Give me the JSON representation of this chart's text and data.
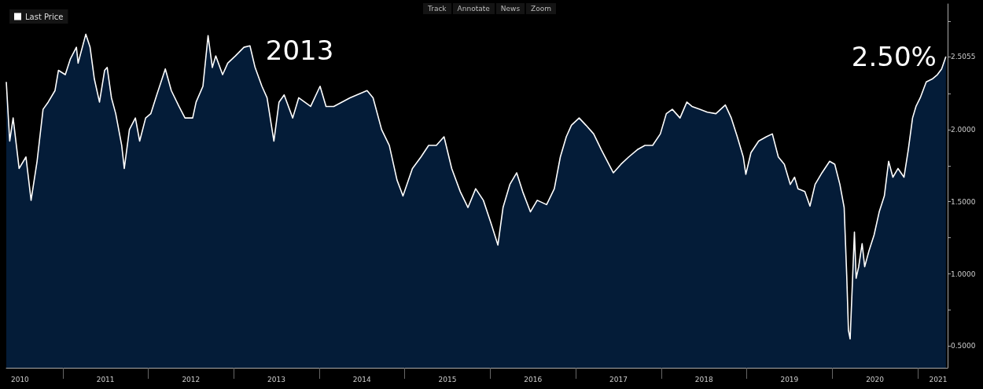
{
  "chart_data": {
    "type": "area",
    "legend": "top left",
    "marker": "none",
    "line_style": "solid",
    "annotations": [
      {
        "text": "2013",
        "x": 2013.19,
        "y": 2.58
      },
      {
        "text": "2.50%",
        "x": 2021.33,
        "y": 2.5055
      },
      "Track",
      "Annotate",
      "News",
      "Zoom"
    ],
    "xlim": [
      2010.34,
      2021.35
    ],
    "xticks": [
      {
        "value": 2010.5,
        "label": "2010"
      },
      {
        "value": 2011,
        "label": null
      },
      {
        "value": 2011.5,
        "label": "2011"
      },
      {
        "value": 2012,
        "label": null
      },
      {
        "value": 2012.5,
        "label": "2012"
      },
      {
        "value": 2013,
        "label": null
      },
      {
        "value": 2013.5,
        "label": "2013"
      },
      {
        "value": 2014,
        "label": null
      },
      {
        "value": 2014.5,
        "label": "2014"
      },
      {
        "value": 2015,
        "label": null
      },
      {
        "value": 2015.5,
        "label": "2015"
      },
      {
        "value": 2016,
        "label": null
      },
      {
        "value": 2016.5,
        "label": "2016"
      },
      {
        "value": 2017,
        "label": null
      },
      {
        "value": 2017.5,
        "label": "2017"
      },
      {
        "value": 2018,
        "label": null
      },
      {
        "value": 2018.5,
        "label": "2018"
      },
      {
        "value": 2019,
        "label": null
      },
      {
        "value": 2019.5,
        "label": "2019"
      },
      {
        "value": 2020,
        "label": null
      },
      {
        "value": 2020.5,
        "label": "2020"
      },
      {
        "value": 2021,
        "label": null
      },
      {
        "value": 2021.24,
        "label": "2021"
      }
    ],
    "ylim": [
      0.35,
      2.87
    ],
    "yticks": [
      {
        "value": 0.5,
        "label": "0.5000"
      },
      {
        "value": 0.75,
        "label": null
      },
      {
        "value": 1,
        "label": "1.0000"
      },
      {
        "value": 1.25,
        "label": null
      },
      {
        "value": 1.5,
        "label": "1.5000"
      },
      {
        "value": 1.75,
        "label": null
      },
      {
        "value": 2,
        "label": "2.0000"
      },
      {
        "value": 2.25,
        "label": null
      },
      {
        "value": 2.5055,
        "label": "2.5055"
      },
      {
        "value": 2.75,
        "label": null
      }
    ],
    "series": [
      {
        "name": "Last Price",
        "color": "#ffffff",
        "x": [
          2010.34,
          2010.38,
          2010.42,
          2010.49,
          2010.57,
          2010.63,
          2010.7,
          2010.77,
          2010.83,
          2010.91,
          2010.95,
          2011.03,
          2011.09,
          2011.16,
          2011.18,
          2011.27,
          2011.32,
          2011.37,
          2011.43,
          2011.49,
          2011.52,
          2011.57,
          2011.62,
          2011.69,
          2011.72,
          2011.78,
          2011.85,
          2011.9,
          2011.97,
          2012.03,
          2012.1,
          2012.2,
          2012.27,
          2012.36,
          2012.43,
          2012.52,
          2012.56,
          2012.64,
          2012.7,
          2012.75,
          2012.79,
          2012.87,
          2012.93,
          2013.02,
          2013.12,
          2013.19,
          2013.25,
          2013.33,
          2013.39,
          2013.47,
          2013.53,
          2013.59,
          2013.69,
          2013.76,
          2013.9,
          2014.01,
          2014.08,
          2014.17,
          2014.36,
          2014.56,
          2014.63,
          2014.73,
          2014.82,
          2014.91,
          2014.98,
          2015.09,
          2015.19,
          2015.28,
          2015.37,
          2015.46,
          2015.55,
          2015.65,
          2015.74,
          2015.83,
          2015.92,
          2016.01,
          2016.09,
          2016.15,
          2016.23,
          2016.31,
          2016.38,
          2016.47,
          2016.55,
          2016.66,
          2016.75,
          2016.82,
          2016.89,
          2016.95,
          2017.04,
          2017.12,
          2017.21,
          2017.3,
          2017.44,
          2017.53,
          2017.62,
          2017.72,
          2017.81,
          2017.9,
          2017.99,
          2018.06,
          2018.13,
          2018.22,
          2018.3,
          2018.36,
          2018.45,
          2018.54,
          2018.64,
          2018.75,
          2018.82,
          2018.89,
          2018.96,
          2018.99,
          2019.05,
          2019.14,
          2019.23,
          2019.3,
          2019.37,
          2019.44,
          2019.51,
          2019.56,
          2019.6,
          2019.68,
          2019.74,
          2019.8,
          2019.88,
          2019.97,
          2020.03,
          2020.09,
          2020.14,
          2020.17,
          2020.19,
          2020.21,
          2020.24,
          2020.26,
          2020.28,
          2020.31,
          2020.35,
          2020.38,
          2020.43,
          2020.49,
          2020.55,
          2020.61,
          2020.66,
          2020.71,
          2020.77,
          2020.84,
          2020.89,
          2020.94,
          2020.98,
          2021.03,
          2021.1,
          2021.17,
          2021.23,
          2021.28,
          2021.33
        ],
        "values": [
          2.33,
          1.92,
          2.08,
          1.73,
          1.81,
          1.51,
          1.78,
          2.14,
          2.19,
          2.27,
          2.41,
          2.38,
          2.49,
          2.57,
          2.46,
          2.66,
          2.57,
          2.35,
          2.19,
          2.41,
          2.43,
          2.22,
          2.11,
          1.89,
          1.73,
          2.0,
          2.08,
          1.92,
          2.08,
          2.11,
          2.24,
          2.42,
          2.27,
          2.16,
          2.08,
          2.08,
          2.19,
          2.3,
          2.65,
          2.43,
          2.51,
          2.38,
          2.46,
          2.51,
          2.57,
          2.58,
          2.43,
          2.3,
          2.22,
          1.92,
          2.19,
          2.24,
          2.08,
          2.22,
          2.16,
          2.3,
          2.16,
          2.16,
          2.22,
          2.27,
          2.22,
          2.0,
          1.89,
          1.65,
          1.54,
          1.73,
          1.81,
          1.89,
          1.89,
          1.95,
          1.73,
          1.57,
          1.46,
          1.59,
          1.51,
          1.35,
          1.2,
          1.46,
          1.62,
          1.7,
          1.57,
          1.43,
          1.51,
          1.48,
          1.59,
          1.81,
          1.95,
          2.03,
          2.08,
          2.03,
          1.97,
          1.86,
          1.7,
          1.76,
          1.81,
          1.86,
          1.89,
          1.89,
          1.97,
          2.11,
          2.14,
          2.08,
          2.19,
          2.16,
          2.14,
          2.12,
          2.11,
          2.17,
          2.08,
          1.95,
          1.81,
          1.69,
          1.84,
          1.92,
          1.95,
          1.97,
          1.81,
          1.76,
          1.62,
          1.67,
          1.59,
          1.57,
          1.47,
          1.62,
          1.7,
          1.78,
          1.76,
          1.62,
          1.46,
          0.99,
          0.61,
          0.55,
          0.99,
          1.29,
          0.97,
          1.05,
          1.21,
          1.05,
          1.16,
          1.27,
          1.43,
          1.54,
          1.78,
          1.67,
          1.73,
          1.67,
          1.86,
          2.08,
          2.16,
          2.22,
          2.33,
          2.35,
          2.38,
          2.42,
          2.5055
        ]
      }
    ]
  }
}
